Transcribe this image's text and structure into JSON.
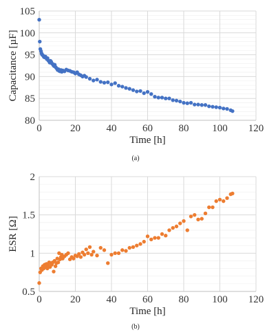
{
  "chart_data": [
    {
      "type": "scatter",
      "caption": "(a)",
      "xlabel": "Time [h]",
      "ylabel": "Capacitance [µF]",
      "xlim": [
        0,
        120
      ],
      "ylim": [
        80,
        105
      ],
      "xticks": [
        0,
        20,
        40,
        60,
        80,
        100,
        120
      ],
      "yticks": [
        80,
        85,
        90,
        95,
        100,
        105
      ],
      "grid": true,
      "color": "#4472c4",
      "series": [
        {
          "x": [
            0,
            0.3,
            0.6,
            1,
            1.3,
            1.6,
            2,
            2.3,
            2.6,
            3,
            3.4,
            3.8,
            4.2,
            4.6,
            5,
            5.4,
            5.8,
            6.2,
            6.6,
            7,
            7.4,
            7.8,
            8.2,
            8.6,
            9,
            9.4,
            9.8,
            10.2,
            10.6,
            11,
            11.5,
            12,
            12.5,
            13,
            13.5,
            14,
            15,
            16,
            17,
            18,
            19,
            20,
            21,
            22,
            23,
            24,
            25,
            26,
            28,
            30,
            32,
            34,
            36,
            38,
            40,
            42,
            44,
            46,
            48,
            50,
            52,
            54,
            56,
            58,
            60,
            62,
            64,
            66,
            68,
            70,
            72,
            74,
            76,
            78,
            80,
            82,
            84,
            86,
            88,
            90,
            92,
            94,
            96,
            98,
            100,
            102,
            104,
            106,
            107
          ],
          "y": [
            103,
            98,
            96.3,
            95.8,
            95.3,
            95,
            94.9,
            94.7,
            94.5,
            94.4,
            94.6,
            94.3,
            94,
            94.2,
            93.7,
            93.5,
            93.2,
            93.6,
            93.4,
            93,
            92.9,
            92.6,
            92.4,
            92.7,
            92.2,
            92,
            91.8,
            91.5,
            91.7,
            91.3,
            91.2,
            91.5,
            91.1,
            91.4,
            91.3,
            91.2,
            91.6,
            91.4,
            91.3,
            91.1,
            91,
            90.7,
            91,
            90.5,
            90.3,
            90,
            90.2,
            89.9,
            89.5,
            89.1,
            89.3,
            88.8,
            88.6,
            88.7,
            88.2,
            88.5,
            87.9,
            87.7,
            87.4,
            87.2,
            86.9,
            86.6,
            86.7,
            86.2,
            86.5,
            86,
            85.4,
            85.2,
            85.2,
            85,
            85,
            84.6,
            84.5,
            84.3,
            84,
            83.9,
            84,
            83.6,
            83.6,
            83.5,
            83.5,
            83.2,
            83.1,
            83,
            82.9,
            82.7,
            82.6,
            82.3,
            82.1
          ]
        }
      ]
    },
    {
      "type": "scatter",
      "caption": "(b)",
      "xlabel": "Time [h]",
      "ylabel": "ESR [Ω]",
      "xlim": [
        0,
        120
      ],
      "ylim": [
        0.5,
        2
      ],
      "xticks": [
        0,
        20,
        40,
        60,
        80,
        100,
        120
      ],
      "yticks": [
        0.5,
        1,
        1.5,
        2
      ],
      "grid": true,
      "color": "#ed7d31",
      "series": [
        {
          "x": [
            0,
            0.5,
            1,
            1.5,
            2,
            2.5,
            3,
            3.5,
            4,
            4.5,
            5,
            5.5,
            6,
            6.5,
            7,
            7.5,
            8,
            8.5,
            9,
            9.5,
            10,
            10.5,
            11,
            11.5,
            12,
            12.5,
            13,
            14,
            15,
            16,
            17,
            18,
            19,
            20,
            21,
            22,
            23,
            24,
            25,
            26,
            27,
            28,
            29,
            30,
            32,
            34,
            36,
            38,
            40,
            42,
            44,
            46,
            48,
            50,
            52,
            54,
            56,
            58,
            60,
            62,
            64,
            66,
            68,
            70,
            72,
            74,
            76,
            78,
            80,
            82,
            84,
            86,
            88,
            90,
            92,
            94,
            96,
            98,
            100,
            102,
            104,
            106,
            107
          ],
          "y": [
            0.61,
            0.75,
            0.8,
            0.78,
            0.83,
            0.8,
            0.85,
            0.82,
            0.86,
            0.8,
            0.84,
            0.88,
            0.82,
            0.87,
            0.85,
            0.88,
            0.76,
            0.9,
            0.83,
            0.87,
            0.93,
            0.88,
            1.0,
            0.92,
            0.95,
            0.98,
            0.93,
            0.96,
            0.98,
            1.0,
            0.92,
            0.95,
            0.93,
            0.97,
            0.96,
            0.99,
            0.95,
            1.01,
            0.98,
            1.05,
            1.0,
            1.08,
            0.98,
            1.02,
            0.97,
            1.07,
            1.04,
            0.87,
            0.98,
            1.0,
            1.0,
            1.04,
            1.03,
            1.07,
            1.08,
            1.1,
            1.12,
            1.15,
            1.22,
            1.18,
            1.2,
            1.2,
            1.25,
            1.23,
            1.3,
            1.33,
            1.35,
            1.39,
            1.42,
            1.3,
            1.48,
            1.5,
            1.44,
            1.45,
            1.52,
            1.6,
            1.6,
            1.68,
            1.7,
            1.68,
            1.72,
            1.77,
            1.78
          ]
        }
      ]
    }
  ]
}
